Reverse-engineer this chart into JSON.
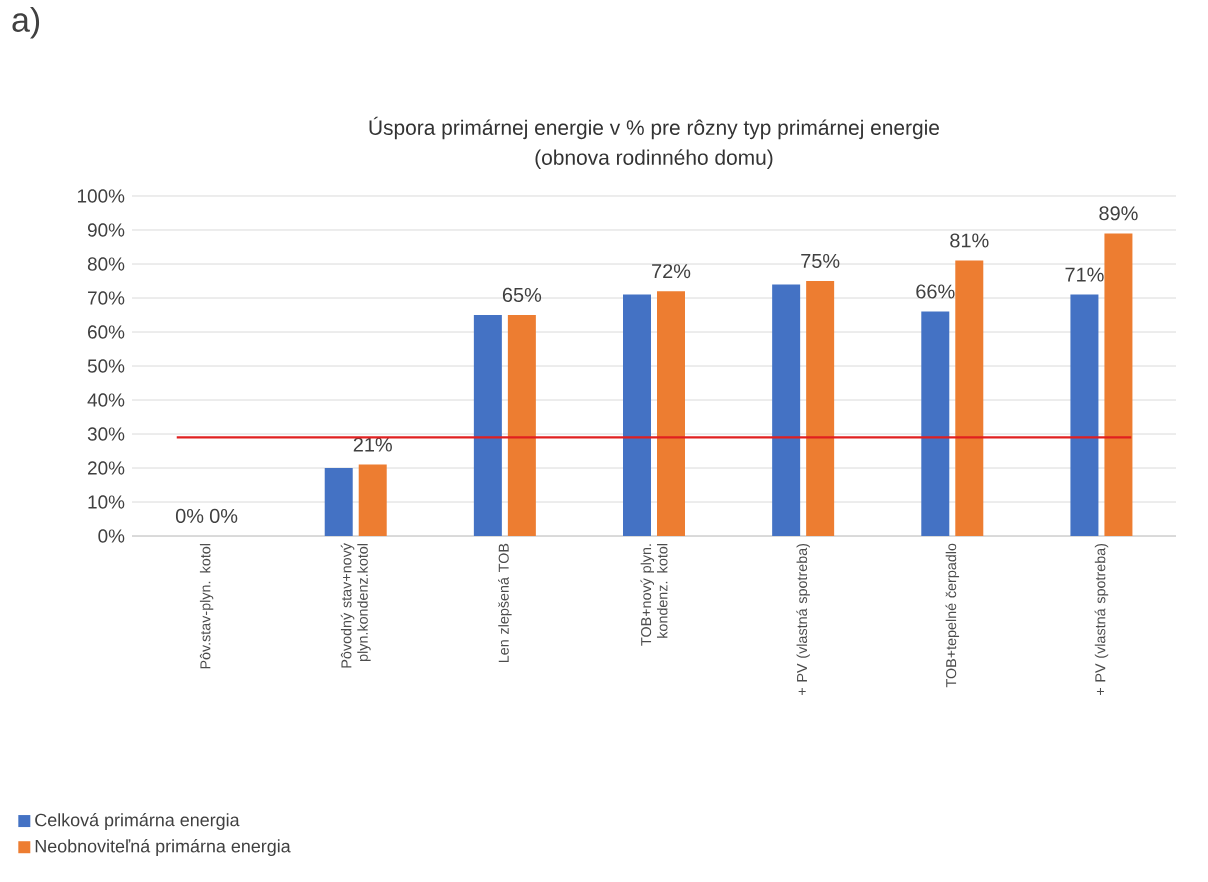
{
  "chart_data": {
    "type": "bar",
    "title": "Úspora primárnej energie v % pre rôzny typ primárnej energie",
    "subtitle": "(obnova rodinného domu)",
    "annotations": [
      "a)"
    ],
    "categories": [
      "Pôv.stav-plyn. kotol",
      "Pôvodný stav+nový plyn.kondenz.kotol",
      "Len zlepšená TOB",
      "TOB+nový plyn. kondenz. kotol",
      "+ PV (vlastná spotreba)",
      "TOB+tepelné čerpadlo",
      "+ PV (vlastná spotreba)"
    ],
    "series": [
      {
        "name": "Celková primárna energia",
        "color": "#4472c4",
        "values": [
          0,
          20,
          65,
          71,
          74,
          66,
          71
        ],
        "value_labels": [
          "0%",
          null,
          null,
          null,
          null,
          "66%",
          "71%"
        ]
      },
      {
        "name": "Neobnoviteľná primárna energia",
        "color": "#ed7d31",
        "values": [
          0,
          21,
          65,
          72,
          75,
          81,
          89
        ],
        "value_labels": [
          "0%",
          "21%",
          "65%",
          "72%",
          "75%",
          "81%",
          "89%"
        ]
      }
    ],
    "ylim": [
      0,
      100
    ],
    "yticks": [
      {
        "value": 0,
        "label": "0%"
      },
      {
        "value": 10,
        "label": "10%"
      },
      {
        "value": 20,
        "label": "20%"
      },
      {
        "value": 30,
        "label": "30%"
      },
      {
        "value": 40,
        "label": "40%"
      },
      {
        "value": 50,
        "label": "50%"
      },
      {
        "value": 60,
        "label": "60%"
      },
      {
        "value": 70,
        "label": "70%"
      },
      {
        "value": 80,
        "label": "80%"
      },
      {
        "value": 90,
        "label": "90%"
      },
      {
        "value": 100,
        "label": "100%"
      }
    ],
    "ref_lines": [
      {
        "axis": "y",
        "value": 29,
        "color": "#e02020"
      }
    ],
    "grid": "y",
    "legend": "bottom left"
  }
}
